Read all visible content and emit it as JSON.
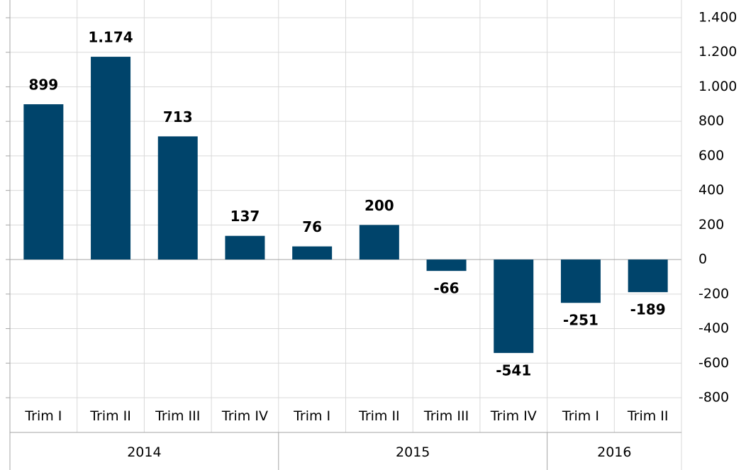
{
  "chart_data": {
    "type": "bar",
    "categories": [
      "Trim I",
      "Trim II",
      "Trim III",
      "Trim IV",
      "Trim I",
      "Trim II",
      "Trim III",
      "Trim IV",
      "Trim I",
      "Trim II"
    ],
    "groups": [
      {
        "label": "2014",
        "count": 4
      },
      {
        "label": "2015",
        "count": 4
      },
      {
        "label": "2016",
        "count": 2
      }
    ],
    "values": [
      899,
      1174,
      713,
      137,
      76,
      200,
      -66,
      -541,
      -251,
      -189
    ],
    "value_labels": [
      "899",
      "1.174",
      "713",
      "137",
      "76",
      "200",
      "-66",
      "-541",
      "-251",
      "-189"
    ],
    "color": "#00446b",
    "ylim": [
      -800,
      1400
    ],
    "yticks": [
      -800,
      -600,
      -400,
      -200,
      0,
      200,
      400,
      600,
      800,
      {
        "value": 1000,
        "label": "1.000"
      },
      {
        "value": 1200,
        "label": "1.200"
      },
      {
        "value": 1400,
        "label": "1.400"
      }
    ],
    "y_axis_side": "right",
    "grid": true
  }
}
